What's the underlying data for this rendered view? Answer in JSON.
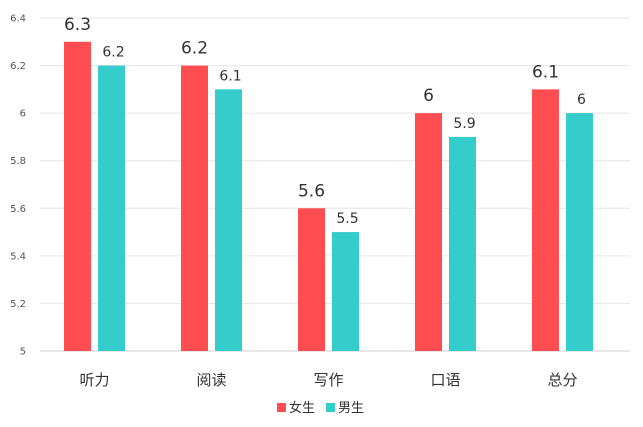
{
  "chart_data": {
    "type": "bar",
    "categories": [
      "听力",
      "阅读",
      "写作",
      "口语",
      "总分"
    ],
    "series": [
      {
        "name": "女生",
        "values": [
          6.3,
          6.2,
          5.6,
          6.0,
          6.1
        ],
        "color": "#ff4d52"
      },
      {
        "name": "男生",
        "values": [
          6.2,
          6.1,
          5.5,
          5.9,
          6.0
        ],
        "color": "#35cccc"
      }
    ],
    "data_labels": [
      [
        "6.3",
        "6.2",
        "5.6",
        "6",
        "6.1"
      ],
      [
        "6.2",
        "6.1",
        "5.5",
        "5.9",
        "6"
      ]
    ],
    "y_ticks": [
      "5",
      "5.2",
      "5.4",
      "5.6",
      "5.8",
      "6",
      "6.2",
      "6.4"
    ],
    "ylim": [
      5,
      6.4
    ],
    "grid": true,
    "legend_position": "bottom-center"
  }
}
